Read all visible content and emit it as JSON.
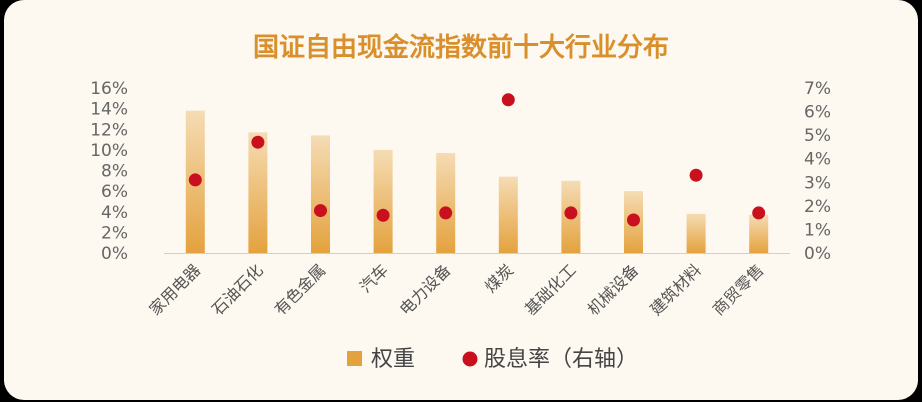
{
  "chart_data": {
    "type": "bar",
    "title": "国证自由现金流指数前十大行业分布",
    "categories": [
      "家用电器",
      "石油石化",
      "有色金属",
      "汽车",
      "电力设备",
      "煤炭",
      "基础化工",
      "机械设备",
      "建筑材料",
      "商贸零售"
    ],
    "series": [
      {
        "name": "权重",
        "type": "bar",
        "axis": "left",
        "values": [
          13.8,
          11.7,
          11.4,
          10.0,
          9.7,
          7.4,
          7.0,
          6.0,
          3.8,
          3.7
        ]
      },
      {
        "name": "股息率（右轴）",
        "type": "scatter",
        "axis": "right",
        "values": [
          3.1,
          4.7,
          1.8,
          1.6,
          1.7,
          6.5,
          1.7,
          1.4,
          3.3,
          1.7
        ]
      }
    ],
    "y_left": {
      "min": 0,
      "max": 16,
      "step": 2,
      "tick_labels": [
        "0%",
        "2%",
        "4%",
        "6%",
        "8%",
        "10%",
        "12%",
        "14%",
        "16%"
      ]
    },
    "y_right": {
      "min": 0,
      "max": 7,
      "step": 1,
      "tick_labels": [
        "0%",
        "1%",
        "2%",
        "3%",
        "4%",
        "5%",
        "6%",
        "7%"
      ]
    },
    "grid": false,
    "legend_position": "bottom-center",
    "colors": {
      "title": "#d9902c",
      "bar_top": "#f5dcb4",
      "bar_bottom": "#e4a23e",
      "dot": "#c8101e",
      "axis": "#cfcfcf"
    }
  }
}
